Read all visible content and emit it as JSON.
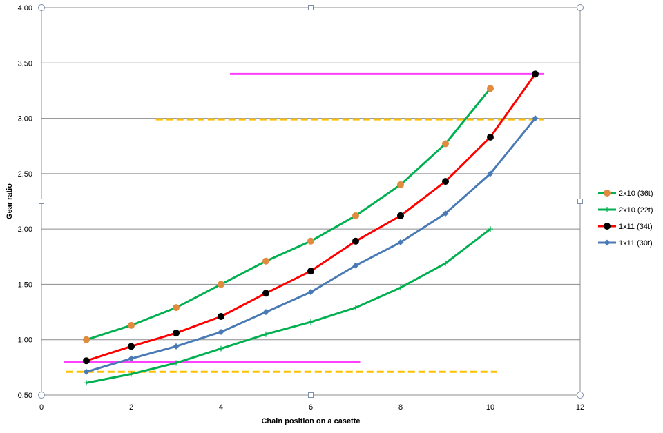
{
  "chart_data": {
    "type": "line",
    "xlabel": "Chain position on a casette",
    "ylabel": "Gear ratio",
    "xlim": [
      0,
      12
    ],
    "ylim": [
      0.5,
      4.0
    ],
    "x_ticks": [
      "0",
      "2",
      "4",
      "6",
      "8",
      "10",
      "12"
    ],
    "y_ticks": [
      "0,50",
      "1,00",
      "1,50",
      "2,00",
      "2,50",
      "3,00",
      "3,50",
      "4,00"
    ],
    "grid": "horizontal",
    "legend_position": "right",
    "series": [
      {
        "name": "2x10 (36t)",
        "color": "#00b050",
        "marker": "circle",
        "marker_color": "#e08b3e",
        "x": [
          1,
          2,
          3,
          4,
          5,
          6,
          7,
          8,
          9,
          10
        ],
        "y": [
          1.0,
          1.13,
          1.29,
          1.5,
          1.71,
          1.89,
          2.12,
          2.4,
          2.77,
          3.27
        ]
      },
      {
        "name": "2x10 (22t)",
        "color": "#00b050",
        "marker": "plus",
        "marker_color": "#00b050",
        "x": [
          1,
          2,
          3,
          4,
          5,
          6,
          7,
          8,
          9,
          10
        ],
        "y": [
          0.61,
          0.69,
          0.79,
          0.92,
          1.05,
          1.16,
          1.29,
          1.47,
          1.69,
          2.0
        ]
      },
      {
        "name": "1x11 (34t)",
        "color": "#ff0000",
        "marker": "circle",
        "marker_color": "#000000",
        "x": [
          1,
          2,
          3,
          4,
          5,
          6,
          7,
          8,
          9,
          10,
          11
        ],
        "y": [
          0.81,
          0.94,
          1.06,
          1.21,
          1.42,
          1.62,
          1.89,
          2.12,
          2.43,
          2.83,
          3.4
        ]
      },
      {
        "name": "1x11 (30t)",
        "color": "#4a7ab5",
        "marker": "diamond",
        "marker_color": "#4a7ab5",
        "x": [
          1,
          2,
          3,
          4,
          5,
          6,
          7,
          8,
          9,
          10,
          11
        ],
        "y": [
          0.71,
          0.83,
          0.94,
          1.07,
          1.25,
          1.43,
          1.67,
          1.88,
          2.14,
          2.5,
          3.0
        ]
      }
    ],
    "reference_lines": [
      {
        "y": 3.4,
        "x_start": 4.2,
        "x_end": 11.2,
        "color": "#ff40ff",
        "style": "solid"
      },
      {
        "y": 2.99,
        "x_start": 2.55,
        "x_end": 11.2,
        "color": "#ffc000",
        "style": "dashed"
      },
      {
        "y": 0.8,
        "x_start": 0.5,
        "x_end": 7.1,
        "color": "#ff40ff",
        "style": "solid"
      },
      {
        "y": 0.71,
        "x_start": 0.55,
        "x_end": 10.15,
        "color": "#ffc000",
        "style": "dashed"
      }
    ]
  }
}
